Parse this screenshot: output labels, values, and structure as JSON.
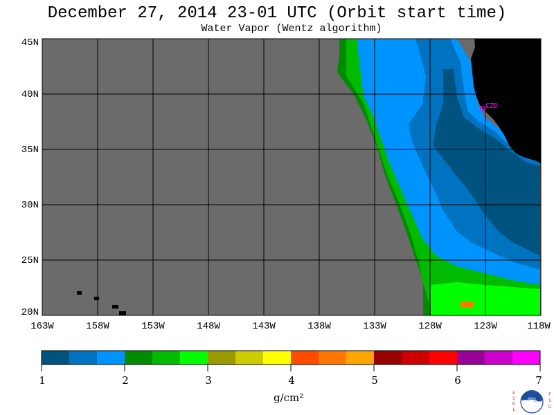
{
  "header": {
    "title": "December 27, 2014  23-01 UTC  (Orbit start time)",
    "subtitle": "Water Vapor (Wentz algorithm)"
  },
  "map": {
    "lat_labels": [
      "45N",
      "40N",
      "35N",
      "30N",
      "25N",
      "20N"
    ],
    "lon_labels": [
      "163W",
      "158W",
      "153W",
      "148W",
      "143W",
      "138W",
      "133W",
      "128W",
      "123W",
      "118W"
    ],
    "station_label": "CZD",
    "colors": {
      "no_data": "#6b6b6b",
      "land": "#000000",
      "grid": "#000000",
      "station": "#ff00ff"
    }
  },
  "colorbar": {
    "tick_labels": [
      "1",
      "2",
      "3",
      "4",
      "5",
      "6",
      "7"
    ],
    "unit": "g/cm²",
    "colors": [
      "#00537e",
      "#0073c0",
      "#0094ff",
      "#008b00",
      "#00bb00",
      "#00ff00",
      "#999900",
      "#cccc00",
      "#ffff00",
      "#ff4c00",
      "#ff7700",
      "#ffa500",
      "#990000",
      "#cc0000",
      "#ff0000",
      "#990099",
      "#cc00cc",
      "#ff00ff"
    ]
  },
  "logo": {
    "left_text": "ESRL",
    "right_text": "PSD",
    "center_text": "NOAA"
  }
}
